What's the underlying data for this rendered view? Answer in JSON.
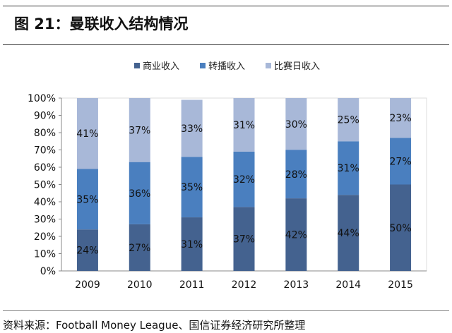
{
  "title": "图 21：曼联收入结构情况",
  "source": "资料来源：Football Money League、国信证券经济研究所整理",
  "chart_data": {
    "type": "bar",
    "stacked": true,
    "categories": [
      "2009",
      "2010",
      "2011",
      "2012",
      "2013",
      "2014",
      "2015"
    ],
    "series": [
      {
        "name": "商业收入",
        "color": "#44628f",
        "values": [
          24,
          27,
          31,
          37,
          42,
          44,
          50
        ]
      },
      {
        "name": "转播收入",
        "color": "#4a7fbf",
        "values": [
          35,
          36,
          35,
          32,
          28,
          31,
          27
        ]
      },
      {
        "name": "比赛日收入",
        "color": "#a8b8d8",
        "values": [
          41,
          37,
          33,
          31,
          30,
          25,
          23
        ]
      }
    ],
    "ylim": [
      0,
      100
    ],
    "yticks": [
      "0%",
      "10%",
      "20%",
      "30%",
      "40%",
      "50%",
      "60%",
      "70%",
      "80%",
      "90%",
      "100%"
    ],
    "legend": "top",
    "grid": false
  }
}
